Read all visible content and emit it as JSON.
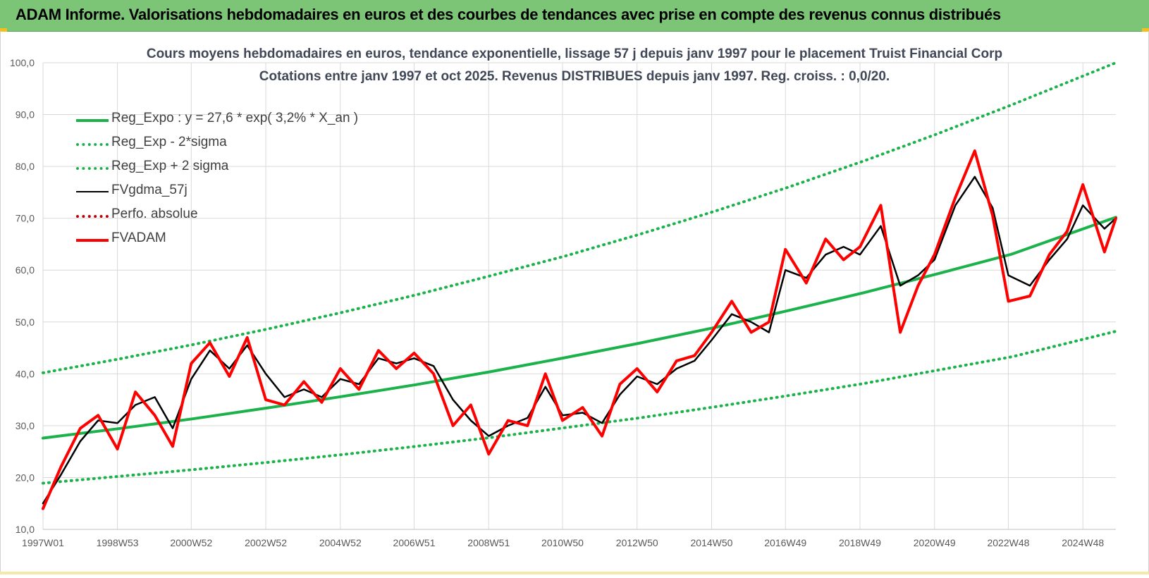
{
  "header": {
    "title": "ADAM Informe. Valorisations hebdomadaires en euros et des courbes de tendances avec prise en compte des revenus connus distribués"
  },
  "colors": {
    "banner": "#7cc576",
    "trend": "#1bb24b",
    "band": "#1bb24b",
    "smooth": "#000000",
    "perf": "#c00000",
    "price": "#ff0000",
    "grid": "#d9d9d9"
  },
  "chart_data": {
    "type": "line",
    "title": "Cours moyens hebdomadaires en euros, tendance exponentielle, lissage 57 j depuis janv 1997 pour le placement Truist Financial Corp",
    "subtitle": "Cotations entre janv 1997 et oct 2025. Revenus DISTRIBUES depuis janv 1997. Reg. croiss. : 0,0/20.",
    "xlabel": "",
    "ylabel": "",
    "ylim": [
      10,
      100
    ],
    "yticks": [
      "10,0",
      "20,0",
      "30,0",
      "40,0",
      "50,0",
      "60,0",
      "70,0",
      "80,0",
      "90,0",
      "100,0"
    ],
    "x_range": [
      "1997W01",
      "2025W42"
    ],
    "xticks": [
      "1997W01",
      "1998W53",
      "2000W52",
      "2002W52",
      "2004W52",
      "2006W51",
      "2008W51",
      "2010W50",
      "2012W50",
      "2014W50",
      "2016W49",
      "2018W49",
      "2020W49",
      "2022W48",
      "2024W48"
    ],
    "grid": true,
    "legend_position": "top-left",
    "series": [
      {
        "name": "Reg_Expo : y = 27,6 * exp( 3,2% *  X_an )",
        "style": "solid-thick",
        "color": "#1bb24b",
        "x": [
          "1997W01",
          "1999W01",
          "2001W01",
          "2003W01",
          "2005W01",
          "2007W01",
          "2009W01",
          "2011W01",
          "2013W01",
          "2015W01",
          "2017W01",
          "2019W01",
          "2021W01",
          "2023W01",
          "2025W42"
        ],
        "values": [
          27.6,
          29.4,
          31.3,
          33.4,
          35.6,
          37.9,
          40.4,
          43.1,
          45.9,
          48.9,
          52.2,
          55.6,
          59.3,
          63.1,
          70.2
        ]
      },
      {
        "name": "Reg_Exp - 2*sigma",
        "style": "dotted",
        "color": "#1bb24b",
        "x": [
          "1997W01",
          "1999W01",
          "2001W01",
          "2003W01",
          "2005W01",
          "2007W01",
          "2009W01",
          "2011W01",
          "2013W01",
          "2015W01",
          "2017W01",
          "2019W01",
          "2021W01",
          "2023W01",
          "2025W42"
        ],
        "values": [
          18.9,
          20.2,
          21.5,
          22.9,
          24.4,
          26.0,
          27.7,
          29.6,
          31.5,
          33.6,
          35.8,
          38.1,
          40.7,
          43.3,
          48.2
        ]
      },
      {
        "name": "Reg_Exp + 2 sigma",
        "style": "dotted",
        "color": "#1bb24b",
        "x": [
          "1997W01",
          "1999W01",
          "2001W01",
          "2003W01",
          "2005W01",
          "2007W01",
          "2009W01",
          "2011W01",
          "2013W01",
          "2015W01",
          "2017W01",
          "2019W01",
          "2021W01",
          "2023W01",
          "2025W42"
        ],
        "values": [
          40.2,
          42.8,
          45.6,
          48.6,
          51.8,
          55.2,
          58.9,
          62.7,
          66.9,
          71.3,
          76.0,
          81.0,
          86.3,
          91.9,
          100.0
        ]
      },
      {
        "name": "FVgdma_57j",
        "style": "solid",
        "color": "#000000",
        "x": [
          "1997W01",
          "1997W26",
          "1998W01",
          "1998W26",
          "1998W53",
          "1999W26",
          "2000W01",
          "2000W26",
          "2000W52",
          "2001W26",
          "2002W01",
          "2002W26",
          "2002W52",
          "2003W26",
          "2004W01",
          "2004W26",
          "2004W52",
          "2005W26",
          "2006W01",
          "2006W26",
          "2006W51",
          "2007W26",
          "2008W01",
          "2008W26",
          "2008W51",
          "2009W26",
          "2010W01",
          "2010W26",
          "2010W50",
          "2011W26",
          "2012W01",
          "2012W26",
          "2012W50",
          "2013W26",
          "2014W01",
          "2014W26",
          "2014W50",
          "2015W26",
          "2016W01",
          "2016W26",
          "2016W49",
          "2017W26",
          "2018W01",
          "2018W26",
          "2018W49",
          "2019W26",
          "2020W01",
          "2020W26",
          "2020W49",
          "2021W26",
          "2022W01",
          "2022W26",
          "2022W48",
          "2023W26",
          "2024W01",
          "2024W26",
          "2024W48",
          "2025W26",
          "2025W42"
        ],
        "values": [
          15.0,
          20.5,
          27.0,
          31.0,
          30.5,
          34.0,
          35.5,
          29.5,
          39.0,
          44.5,
          41.0,
          45.5,
          40.0,
          35.5,
          37.0,
          35.5,
          39.0,
          38.0,
          43.0,
          42.0,
          43.0,
          41.5,
          35.0,
          31.0,
          28.0,
          30.0,
          31.5,
          37.5,
          32.0,
          32.5,
          30.5,
          36.0,
          39.5,
          38.0,
          41.0,
          42.5,
          46.5,
          51.5,
          50.0,
          48.0,
          60.0,
          58.5,
          63.0,
          64.5,
          63.0,
          68.5,
          57.0,
          59.0,
          62.0,
          72.5,
          78.0,
          72.0,
          59.0,
          57.0,
          62.0,
          66.0,
          72.5,
          68.0,
          70.0
        ]
      },
      {
        "name": "Perfo. absolue",
        "style": "dotted",
        "color": "#c00000",
        "x": [],
        "values": []
      },
      {
        "name": "FVADAM",
        "style": "solid-thick",
        "color": "#ff0000",
        "x": [
          "1997W01",
          "1997W26",
          "1998W01",
          "1998W26",
          "1998W53",
          "1999W26",
          "2000W01",
          "2000W26",
          "2000W52",
          "2001W26",
          "2002W01",
          "2002W26",
          "2002W52",
          "2003W26",
          "2004W01",
          "2004W26",
          "2004W52",
          "2005W26",
          "2006W01",
          "2006W26",
          "2006W51",
          "2007W26",
          "2008W01",
          "2008W26",
          "2008W51",
          "2009W26",
          "2010W01",
          "2010W26",
          "2010W50",
          "2011W26",
          "2012W01",
          "2012W26",
          "2012W50",
          "2013W26",
          "2014W01",
          "2014W26",
          "2014W50",
          "2015W26",
          "2016W01",
          "2016W26",
          "2016W49",
          "2017W26",
          "2018W01",
          "2018W26",
          "2018W49",
          "2019W26",
          "2020W01",
          "2020W26",
          "2020W49",
          "2021W26",
          "2022W01",
          "2022W26",
          "2022W48",
          "2023W26",
          "2024W01",
          "2024W26",
          "2024W48",
          "2025W26",
          "2025W42"
        ],
        "values": [
          14.0,
          22.0,
          29.5,
          32.0,
          25.5,
          36.5,
          32.0,
          26.0,
          42.0,
          46.0,
          39.5,
          47.0,
          35.0,
          34.0,
          38.5,
          34.5,
          41.0,
          37.0,
          44.5,
          41.0,
          44.0,
          40.0,
          30.0,
          34.0,
          24.5,
          31.0,
          30.0,
          40.0,
          31.0,
          33.5,
          28.0,
          38.0,
          41.0,
          36.5,
          42.5,
          43.5,
          48.0,
          54.0,
          48.0,
          50.0,
          64.0,
          57.5,
          66.0,
          62.0,
          64.5,
          72.5,
          48.0,
          57.0,
          63.0,
          74.0,
          83.0,
          70.5,
          54.0,
          55.0,
          63.0,
          67.5,
          76.5,
          63.5,
          70.0
        ]
      }
    ]
  }
}
